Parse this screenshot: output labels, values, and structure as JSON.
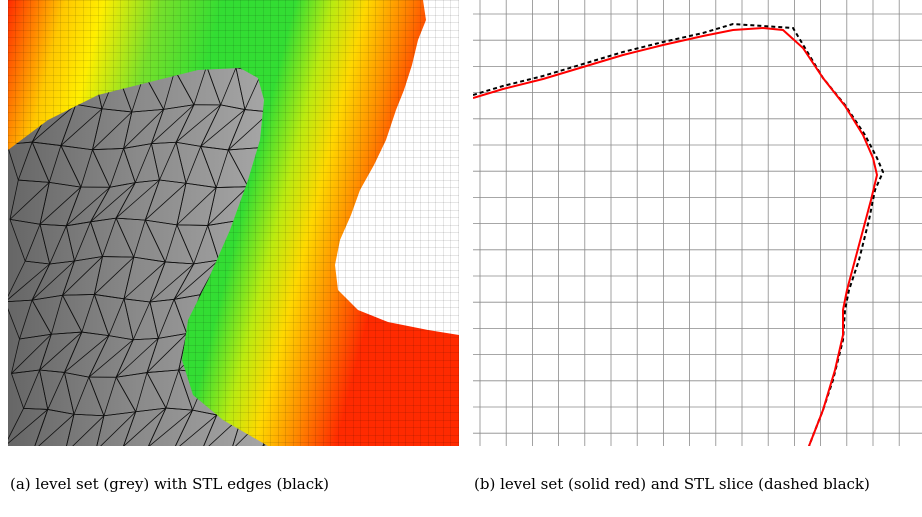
{
  "figure": {
    "panel_a": {
      "caption": "(a) level set (grey) with STL edges (black)",
      "colors": {
        "background": "#ffffff",
        "grid_line": "#000000",
        "surface_grey": "#8c8c8c",
        "near_surface": "#33dd33",
        "mid_band": "#ffee00",
        "far_band": "#ff0000"
      }
    },
    "panel_b": {
      "caption": "(b) level set (solid red) and STL slice (dashed black)",
      "colors": {
        "level_set": "#ff0000",
        "stl_slice": "#000000",
        "grid_line": "#888888"
      }
    }
  }
}
